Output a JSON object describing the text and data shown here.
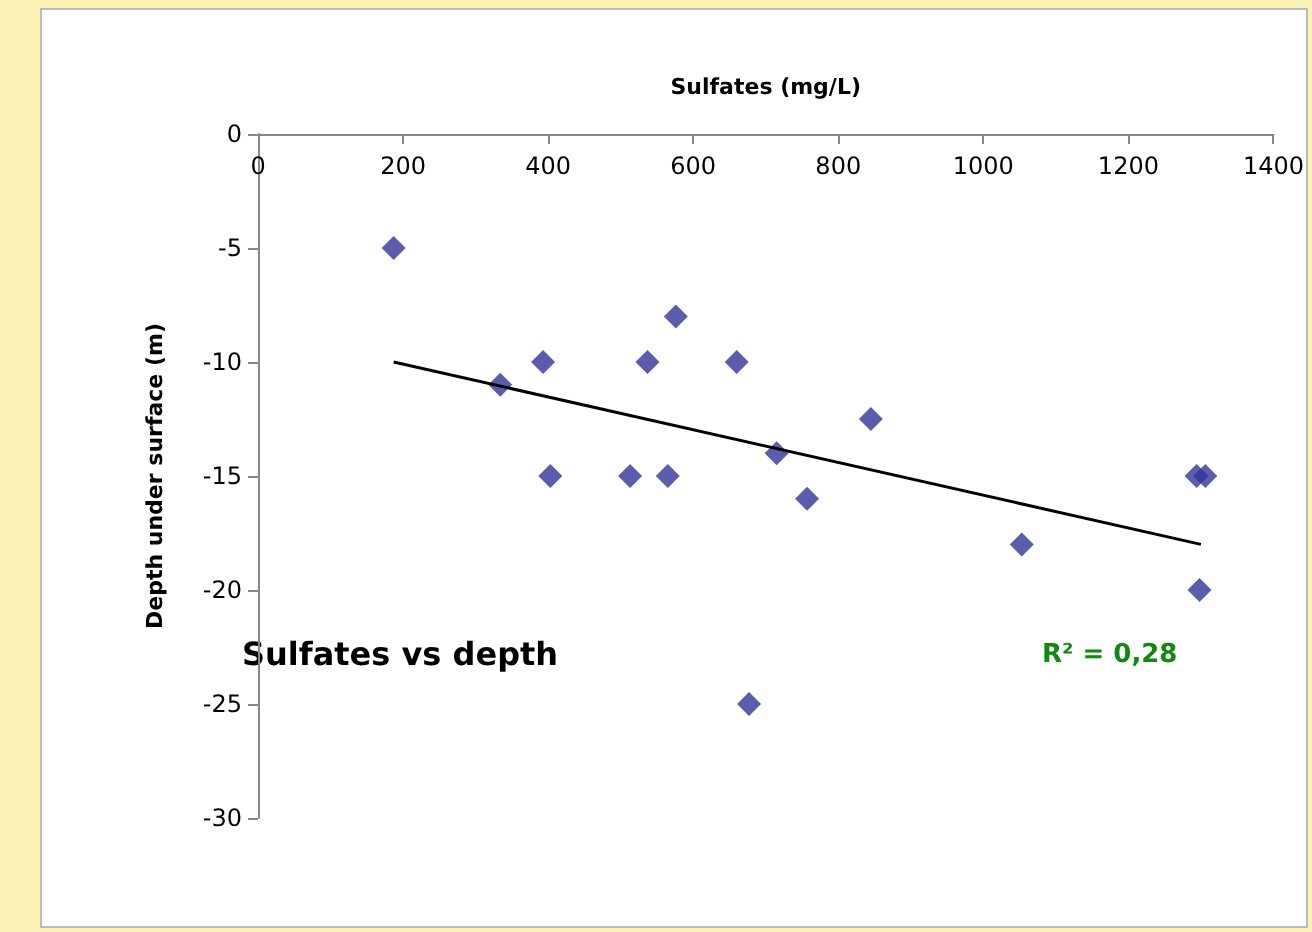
{
  "chart_data": {
    "type": "scatter",
    "xlabel": "Sulfates (mg/L)",
    "ylabel": "Depth under surface (m)",
    "annotations": [
      "Sulfates vs depth",
      "R² = 0,28"
    ],
    "xlim": [
      0,
      1400
    ],
    "xticks": [
      0,
      200,
      400,
      600,
      800,
      1000,
      1200,
      1400
    ],
    "ylim": [
      -30,
      0
    ],
    "yticks": [
      -30,
      -25,
      -20,
      -15,
      -10,
      -5,
      0
    ],
    "grid": false,
    "series": [
      {
        "marker": "diamond",
        "color": "#333399",
        "x": [
          187,
          334,
          393,
          537,
          576,
          660,
          845,
          403,
          513,
          565,
          715,
          757,
          1053,
          1294,
          1306,
          1298,
          677
        ],
        "values": [
          -5,
          -11,
          -10,
          -10,
          -8,
          -10,
          -12.5,
          -15,
          -15,
          -15,
          -14,
          -16,
          -18,
          -15,
          -15,
          -20,
          -25
        ]
      },
      {
        "type": "line",
        "marker": "none",
        "color": "#000000",
        "x": [
          187,
          1300
        ],
        "values": [
          -10,
          -18
        ]
      }
    ]
  }
}
